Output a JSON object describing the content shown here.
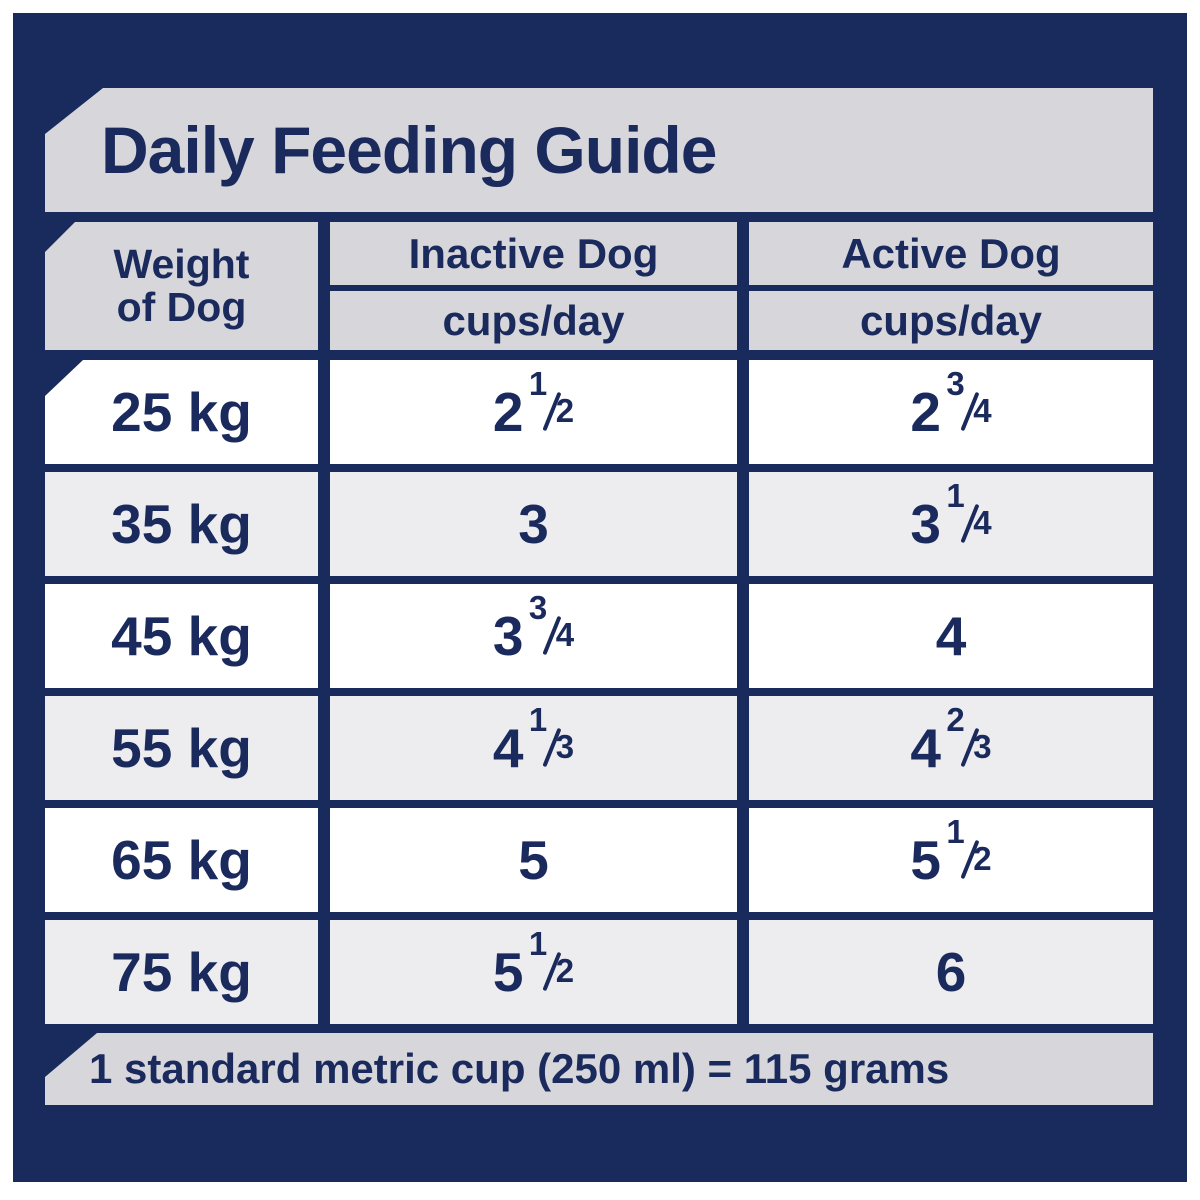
{
  "title": "Daily Feeding Guide",
  "table": {
    "weight_header": {
      "line1": "Weight",
      "line2": "of Dog"
    },
    "columns": [
      {
        "label": "Inactive Dog",
        "unit": "cups/day"
      },
      {
        "label": "Active Dog",
        "unit": "cups/day"
      }
    ],
    "rows": [
      {
        "weight": "25 kg",
        "inactive": "2 ½",
        "active": "2 ¾"
      },
      {
        "weight": "35 kg",
        "inactive": "3",
        "active": "3 ¼"
      },
      {
        "weight": "45 kg",
        "inactive": "3 ¾",
        "active": "4"
      },
      {
        "weight": "55 kg",
        "inactive": "4 ⅓",
        "active": "4 ⅔"
      },
      {
        "weight": "65 kg",
        "inactive": "5",
        "active": "5 ½"
      },
      {
        "weight": "75 kg",
        "inactive": "5 ½",
        "active": "6"
      }
    ]
  },
  "footer": "1 standard metric cup (250 ml) = 115 grams",
  "colors": {
    "navy": "#192a5c",
    "ink": "#1b2a5c",
    "band_gray": "#d7d7db",
    "row_alt": "#ededf0",
    "row_white": "#ffffff",
    "page_bg": "#ffffff"
  }
}
